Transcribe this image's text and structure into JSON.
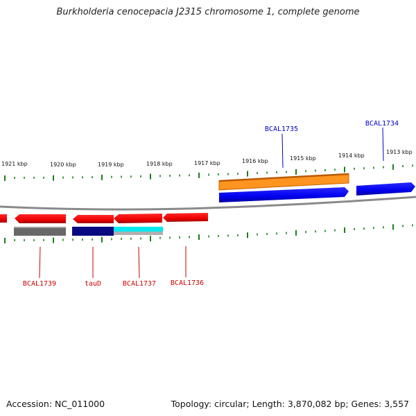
{
  "title": "Burkholderia cenocepacia J2315 chromosome 1, complete genome",
  "footer": {
    "accession": "Accession: NC_011000",
    "topology": "Topology: circular; Length: 3,870,082 bp; Genes: 3,557"
  },
  "scale_labels": [
    "1921 kbp",
    "1920 kbp",
    "1919 kbp",
    "1918 kbp",
    "1917 kbp",
    "1916 kbp",
    "1915 kbp",
    "1914 kbp",
    "1913 kbp"
  ],
  "genes": {
    "forward": [
      {
        "name": "BCAL1735",
        "color": "#0000cc"
      },
      {
        "name": "BCAL1734",
        "color": "#0000cc"
      }
    ],
    "reverse": [
      {
        "name": "BCAL1739",
        "color": "#cc0000"
      },
      {
        "name": "tauD",
        "color": "#cc0000"
      },
      {
        "name": "BCAL1737",
        "color": "#cc0000"
      },
      {
        "name": "BCAL1736",
        "color": "#cc0000"
      }
    ]
  },
  "colors": {
    "reverse_gene": "#ff0000",
    "forward_gene": "#0000ff",
    "feature_orange": "#ff8c00",
    "feature_navy": "#000080",
    "feature_cyan": "#00e5ee",
    "feature_gray": "#666666",
    "tick": "#1a7f1a",
    "backbone": "#888888"
  }
}
